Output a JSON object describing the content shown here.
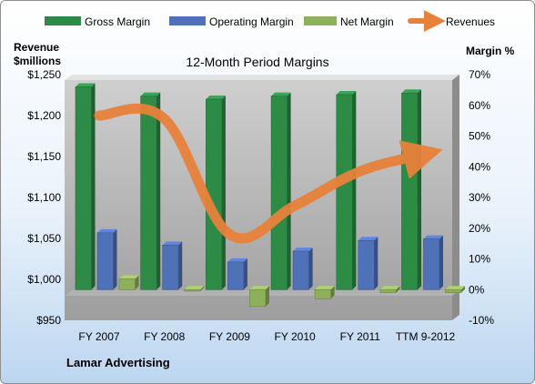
{
  "chart_data": {
    "type": "bar",
    "title": "12-Month Period Margins",
    "company": "Lamar Advertising",
    "categories": [
      "FY 2007",
      "FY 2008",
      "FY 2009",
      "FY 2010",
      "FY 2011",
      "TTM 9-2012"
    ],
    "series": [
      {
        "name": "Gross Margin",
        "axis": "right",
        "kind": "bar",
        "color": "#2e8b46",
        "values": [
          66,
          63,
          62,
          63,
          63.5,
          64
        ]
      },
      {
        "name": "Operating Margin",
        "axis": "right",
        "kind": "bar",
        "color": "#4f71b8",
        "values": [
          18.5,
          14.5,
          9,
          12.5,
          16,
          16.5
        ]
      },
      {
        "name": "Net Margin",
        "axis": "right",
        "kind": "bar",
        "color": "#8fb05a",
        "values": [
          3.5,
          -0.5,
          -5.5,
          -3,
          -1,
          -1
        ]
      },
      {
        "name": "Revenues",
        "axis": "left",
        "kind": "line",
        "color": "#e8813a",
        "values": [
          1200,
          1196,
          1055,
          1090,
          1132,
          1153
        ]
      }
    ],
    "left_axis": {
      "label_line1": "Revenue",
      "label_line2": "$millions",
      "ylim": [
        950,
        1250
      ],
      "ticks": [
        950,
        1000,
        1050,
        1100,
        1150,
        1200,
        1250
      ],
      "tick_labels": [
        "$950",
        "$1,000",
        "$1,050",
        "$1,100",
        "$1,150",
        "$1,200",
        "$1,250"
      ]
    },
    "right_axis": {
      "label": "Margin %",
      "ylim": [
        -10,
        70
      ],
      "ticks": [
        -10,
        0,
        10,
        20,
        30,
        40,
        50,
        60,
        70
      ],
      "tick_labels": [
        "-10%",
        "0%",
        "10%",
        "20%",
        "30%",
        "40%",
        "50%",
        "60%",
        "70%"
      ]
    },
    "legend": {
      "position": "top"
    },
    "grid": false
  }
}
